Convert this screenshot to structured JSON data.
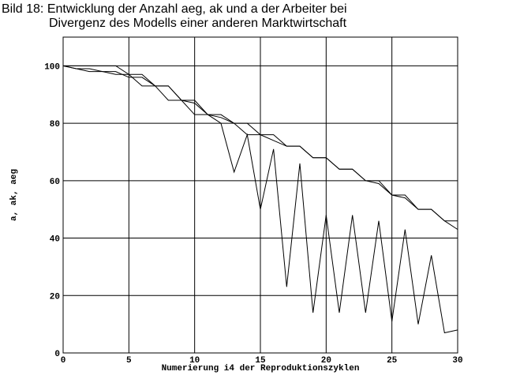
{
  "chart_data": {
    "type": "line",
    "title": "Bild 18: Entwicklung der Anzahl aeg, ak und a der Arbeiter bei",
    "subtitle": "Divergenz des Modells einer anderen Marktwirtschaft",
    "xlabel": "Numerierung i4 der Reproduktionszyklen",
    "ylabel": "a, ak, aeg",
    "x": [
      0,
      1,
      2,
      3,
      4,
      5,
      6,
      7,
      8,
      9,
      10,
      11,
      12,
      13,
      14,
      15,
      16,
      17,
      18,
      19,
      20,
      21,
      22,
      23,
      24,
      25,
      26,
      27,
      28,
      29,
      30
    ],
    "series": [
      {
        "color": "#000000",
        "values": [
          100,
          100,
          100,
          100,
          100,
          97,
          97,
          93,
          93,
          88,
          88,
          83,
          83,
          80,
          76,
          76,
          76,
          72,
          72,
          68,
          68,
          64,
          64,
          60,
          60,
          55,
          55,
          50,
          50,
          46,
          46
        ]
      },
      {
        "color": "#000000",
        "values": [
          100,
          99,
          99,
          98,
          98,
          96,
          96,
          93,
          93,
          88,
          87,
          83,
          82,
          80,
          80,
          76,
          74,
          72,
          72,
          68,
          68,
          64,
          64,
          60,
          59,
          55,
          54,
          50,
          50,
          46,
          43
        ]
      },
      {
        "color": "#000000",
        "values": [
          100,
          99,
          98,
          98,
          97,
          97,
          93,
          93,
          88,
          88,
          83,
          83,
          80,
          63,
          76,
          50,
          71,
          23,
          66,
          14,
          48,
          14,
          48,
          14,
          46,
          11,
          43,
          10,
          34,
          7,
          8
        ]
      }
    ],
    "xlim": [
      0,
      30
    ],
    "xticks": [
      0,
      5,
      10,
      15,
      20,
      25,
      30
    ],
    "ylim": [
      0,
      110
    ],
    "yticks": [
      0,
      20,
      40,
      60,
      80,
      100
    ],
    "grid": true
  }
}
